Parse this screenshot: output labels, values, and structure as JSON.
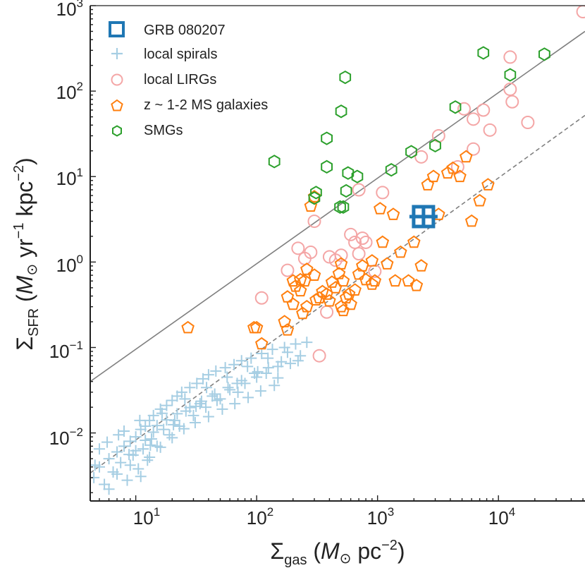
{
  "chart_data": {
    "type": "scatter",
    "x_scale": "log",
    "y_scale": "log",
    "xlim": [
      4.2,
      52000
    ],
    "ylim": [
      0.0016,
      1000
    ],
    "x_ticks": [
      {
        "value": 10,
        "base": "10",
        "exp": "1"
      },
      {
        "value": 100,
        "base": "10",
        "exp": "2"
      },
      {
        "value": 1000,
        "base": "10",
        "exp": "3"
      },
      {
        "value": 10000,
        "base": "10",
        "exp": "4"
      }
    ],
    "y_ticks": [
      {
        "value": 0.01,
        "base": "10",
        "exp": "−2"
      },
      {
        "value": 0.1,
        "base": "10",
        "exp": "−1"
      },
      {
        "value": 1,
        "base": "10",
        "exp": "0"
      },
      {
        "value": 10,
        "base": "10",
        "exp": "1"
      },
      {
        "value": 100,
        "base": "10",
        "exp": "2"
      },
      {
        "value": 1000,
        "base": "10",
        "exp": "3"
      }
    ],
    "xlabel": {
      "sym": "Σ",
      "sub": "gas",
      "open": " (",
      "unit_italic": "M",
      "unit_sub": "⊙",
      "rest": " pc",
      "sup": "−2",
      "close": ")"
    },
    "ylabel": {
      "sym": "Σ",
      "sub": "SFR",
      "open": " (",
      "unit_italic": "M",
      "unit_sub": "⊙",
      "yr": " yr",
      "yr_sup": "−1",
      "kpc": " kpc",
      "kpc_sup": "−2",
      "close": ")"
    },
    "grid": false,
    "legend_position": "top-left",
    "lines": [
      {
        "name": "upper relation",
        "style": "solid",
        "color": "#808080",
        "points": [
          [
            4.2,
            0.04
          ],
          [
            52000,
            500
          ]
        ]
      },
      {
        "name": "lower relation",
        "style": "dashed",
        "color": "#808080",
        "points": [
          [
            4.2,
            0.0034
          ],
          [
            52000,
            52
          ]
        ]
      }
    ],
    "series": [
      {
        "name": "GRB 080207",
        "marker": "square-plus",
        "color": "#1f77b4",
        "points": [
          [
            2400,
            3.4
          ]
        ]
      },
      {
        "name": "local spirals",
        "marker": "plus",
        "color": "#a6cee3",
        "points": [
          [
            4.5,
            0.003
          ],
          [
            5,
            0.004
          ],
          [
            5.5,
            0.0025
          ],
          [
            6,
            0.005
          ],
          [
            6.5,
            0.0035
          ],
          [
            7,
            0.006
          ],
          [
            7.5,
            0.0045
          ],
          [
            8,
            0.007
          ],
          [
            8.5,
            0.0028
          ],
          [
            9,
            0.008
          ],
          [
            9.5,
            0.0055
          ],
          [
            10,
            0.009
          ],
          [
            10.5,
            0.0038
          ],
          [
            11,
            0.011
          ],
          [
            11.5,
            0.0065
          ],
          [
            12,
            0.012
          ],
          [
            12.5,
            0.0048
          ],
          [
            13,
            0.014
          ],
          [
            13.5,
            0.0085
          ],
          [
            14,
            0.016
          ],
          [
            15,
            0.007
          ],
          [
            16,
            0.019
          ],
          [
            17,
            0.011
          ],
          [
            18,
            0.021
          ],
          [
            19,
            0.0095
          ],
          [
            20,
            0.024
          ],
          [
            21,
            0.014
          ],
          [
            22,
            0.027
          ],
          [
            23,
            0.012
          ],
          [
            24,
            0.03
          ],
          [
            26,
            0.018
          ],
          [
            28,
            0.034
          ],
          [
            30,
            0.016
          ],
          [
            32,
            0.038
          ],
          [
            34,
            0.022
          ],
          [
            36,
            0.043
          ],
          [
            38,
            0.02
          ],
          [
            40,
            0.048
          ],
          [
            43,
            0.027
          ],
          [
            46,
            0.053
          ],
          [
            50,
            0.025
          ],
          [
            55,
            0.058
          ],
          [
            60,
            0.032
          ],
          [
            65,
            0.063
          ],
          [
            70,
            0.03
          ],
          [
            75,
            0.07
          ],
          [
            80,
            0.038
          ],
          [
            90,
            0.075
          ],
          [
            100,
            0.045
          ],
          [
            110,
            0.085
          ],
          [
            120,
            0.05
          ],
          [
            135,
            0.095
          ],
          [
            150,
            0.06
          ],
          [
            170,
            0.1
          ],
          [
            190,
            0.065
          ],
          [
            210,
            0.11
          ],
          [
            230,
            0.08
          ],
          [
            260,
            0.115
          ],
          [
            5,
            0.0065
          ],
          [
            6,
            0.0022
          ],
          [
            7,
            0.0033
          ],
          [
            8,
            0.0105
          ],
          [
            9,
            0.0042
          ],
          [
            10,
            0.0062
          ],
          [
            11,
            0.0031
          ],
          [
            12,
            0.0082
          ],
          [
            13,
            0.0052
          ],
          [
            14,
            0.0102
          ],
          [
            15,
            0.0122
          ],
          [
            16,
            0.0068
          ],
          [
            18,
            0.0142
          ],
          [
            20,
            0.0088
          ],
          [
            22,
            0.0168
          ],
          [
            25,
            0.0112
          ],
          [
            28,
            0.0198
          ],
          [
            31,
            0.0132
          ],
          [
            35,
            0.0235
          ],
          [
            40,
            0.0155
          ],
          [
            45,
            0.0285
          ],
          [
            52,
            0.019
          ],
          [
            58,
            0.034
          ],
          [
            66,
            0.022
          ],
          [
            75,
            0.041
          ],
          [
            85,
            0.026
          ],
          [
            96,
            0.05
          ],
          [
            108,
            0.031
          ],
          [
            125,
            0.058
          ],
          [
            140,
            0.036
          ],
          [
            160,
            0.068
          ],
          [
            4.6,
            0.0042
          ],
          [
            5.8,
            0.0078
          ],
          [
            7.2,
            0.0095
          ],
          [
            8.8,
            0.0056
          ],
          [
            10.8,
            0.014
          ],
          [
            13.2,
            0.0072
          ],
          [
            16.5,
            0.017
          ],
          [
            20.5,
            0.0125
          ],
          [
            25.5,
            0.025
          ],
          [
            31.5,
            0.0205
          ],
          [
            38.5,
            0.034
          ],
          [
            47,
            0.024
          ],
          [
            57,
            0.045
          ],
          [
            69,
            0.038
          ],
          [
            84,
            0.06
          ],
          [
            102,
            0.052
          ],
          [
            124,
            0.075
          ],
          [
            150,
            0.044
          ],
          [
            180,
            0.088
          ],
          [
            220,
            0.07
          ]
        ]
      },
      {
        "name": "local LIRGs",
        "marker": "circle",
        "color": "#f4a6a6",
        "points": [
          [
            50000,
            850
          ],
          [
            12500,
            250
          ],
          [
            12500,
            105
          ],
          [
            13000,
            75
          ],
          [
            7500,
            60
          ],
          [
            17500,
            43
          ],
          [
            8500,
            35
          ],
          [
            6200,
            47
          ],
          [
            5200,
            62
          ],
          [
            6200,
            21
          ],
          [
            4600,
            13
          ],
          [
            3200,
            30
          ],
          [
            2300,
            17
          ],
          [
            1100,
            6.5
          ],
          [
            700,
            7
          ],
          [
            600,
            2.1
          ],
          [
            650,
            1.7
          ],
          [
            750,
            1.9
          ],
          [
            500,
            1.2
          ],
          [
            450,
            1.05
          ],
          [
            400,
            1.15
          ],
          [
            300,
            3
          ],
          [
            280,
            1.3
          ],
          [
            250,
            1.1
          ],
          [
            220,
            1.45
          ],
          [
            180,
            0.8
          ],
          [
            380,
            0.26
          ],
          [
            330,
            0.08
          ],
          [
            110,
            0.38
          ],
          [
            800,
            1.7
          ],
          [
            950,
            0.78
          ],
          [
            700,
            1.25
          ]
        ]
      },
      {
        "name": "z ~ 1-2 MS galaxies",
        "marker": "pentagon",
        "color": "#ff7f0e",
        "points": [
          [
            27,
            0.17
          ],
          [
            100,
            0.17
          ],
          [
            95,
            0.17
          ],
          [
            110,
            0.11
          ],
          [
            170,
            0.2
          ],
          [
            180,
            0.16
          ],
          [
            180,
            0.39
          ],
          [
            200,
            0.6
          ],
          [
            200,
            0.32
          ],
          [
            210,
            0.52
          ],
          [
            230,
            0.46
          ],
          [
            250,
            0.6
          ],
          [
            260,
            0.3
          ],
          [
            240,
            0.25
          ],
          [
            280,
            4.5
          ],
          [
            300,
            5.8
          ],
          [
            300,
            0.7
          ],
          [
            350,
            0.45
          ],
          [
            330,
            0.38
          ],
          [
            400,
            0.35
          ],
          [
            380,
            0.42
          ],
          [
            450,
            0.5
          ],
          [
            480,
            0.73
          ],
          [
            500,
            0.95
          ],
          [
            520,
            0.6
          ],
          [
            550,
            0.38
          ],
          [
            500,
            0.3
          ],
          [
            520,
            0.27
          ],
          [
            600,
            0.32
          ],
          [
            700,
            0.72
          ],
          [
            750,
            0.9
          ],
          [
            800,
            0.62
          ],
          [
            900,
            1.03
          ],
          [
            950,
            0.6
          ],
          [
            1100,
            1.7
          ],
          [
            1050,
            4.2
          ],
          [
            1200,
            0.95
          ],
          [
            1350,
            3.6
          ],
          [
            1400,
            0.6
          ],
          [
            1550,
            1.3
          ],
          [
            1800,
            0.6
          ],
          [
            2000,
            1.7
          ],
          [
            2100,
            0.53
          ],
          [
            2300,
            0.9
          ],
          [
            2600,
            8
          ],
          [
            2900,
            10
          ],
          [
            3200,
            3.6
          ],
          [
            3800,
            11
          ],
          [
            4200,
            12.5
          ],
          [
            4800,
            10
          ],
          [
            5400,
            17
          ],
          [
            6000,
            3
          ],
          [
            7000,
            5.2
          ],
          [
            8200,
            8
          ],
          [
            900,
            0.55
          ],
          [
            580,
            0.42
          ],
          [
            420,
            0.58
          ],
          [
            310,
            0.36
          ],
          [
            260,
            0.82
          ],
          [
            230,
            0.62
          ],
          [
            650,
            0.47
          ]
        ]
      },
      {
        "name": "SMGs",
        "marker": "hexagon",
        "color": "#2ca02c",
        "points": [
          [
            7500,
            280
          ],
          [
            24000,
            270
          ],
          [
            12500,
            155
          ],
          [
            540,
            145
          ],
          [
            500,
            58
          ],
          [
            4400,
            65
          ],
          [
            1900,
            19.5
          ],
          [
            3000,
            23
          ],
          [
            1300,
            12
          ],
          [
            380,
            28
          ],
          [
            380,
            13
          ],
          [
            570,
            11
          ],
          [
            680,
            10
          ],
          [
            140,
            15
          ],
          [
            310,
            6.5
          ],
          [
            300,
            5.6
          ],
          [
            550,
            6.8
          ],
          [
            520,
            4.4
          ],
          [
            490,
            4.4
          ]
        ]
      }
    ]
  }
}
